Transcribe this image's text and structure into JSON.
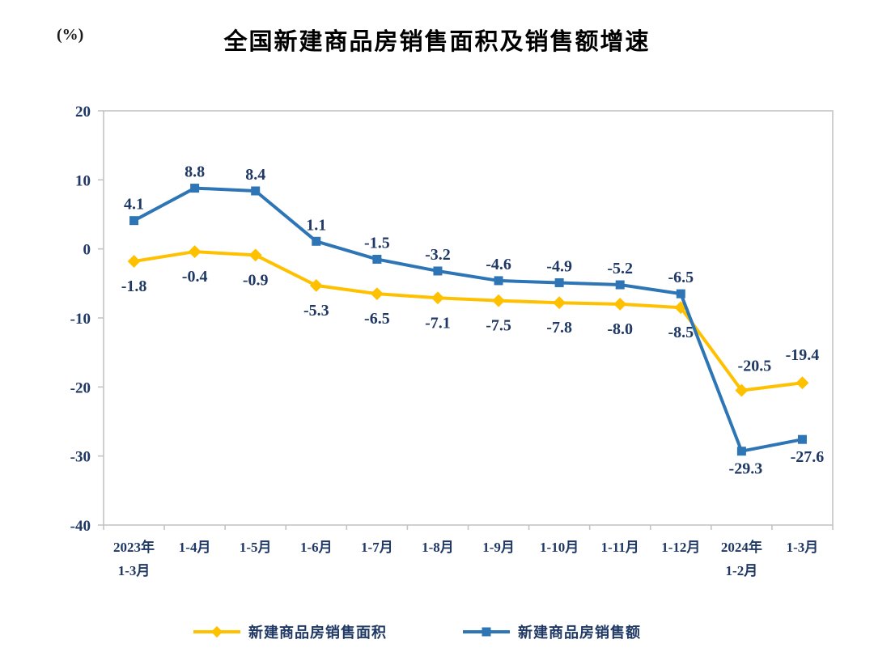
{
  "chart_data": {
    "type": "line",
    "title": "全国新建商品房销售面积及销售额增速",
    "ylabel": "(%)",
    "xlabel": "",
    "ylim": [
      -40,
      20
    ],
    "yticks": [
      20,
      10,
      0,
      -10,
      -20,
      -30,
      -40
    ],
    "grid": false,
    "legend_position": "bottom",
    "categories": [
      "2023年\n1-3月",
      "1-4月",
      "1-5月",
      "1-6月",
      "1-7月",
      "1-8月",
      "1-9月",
      "1-10月",
      "1-11月",
      "1-12月",
      "2024年\n1-2月",
      "1-3月"
    ],
    "series": [
      {
        "name": "新建商品房销售面积",
        "color": "#FFC000",
        "marker": "diamond",
        "values": [
          -1.8,
          -0.4,
          -0.9,
          -5.3,
          -6.5,
          -7.1,
          -7.5,
          -7.8,
          -8.0,
          -8.5,
          -20.5,
          -19.4
        ]
      },
      {
        "name": "新建商品房销售额",
        "color": "#2E75B6",
        "marker": "square",
        "values": [
          4.1,
          8.8,
          8.4,
          1.1,
          -1.5,
          -3.2,
          -4.6,
          -4.9,
          -5.2,
          -6.5,
          -29.3,
          -27.6
        ]
      }
    ],
    "label_text_color": "#1F3864",
    "axis_line_color": "#C4C4C4"
  }
}
